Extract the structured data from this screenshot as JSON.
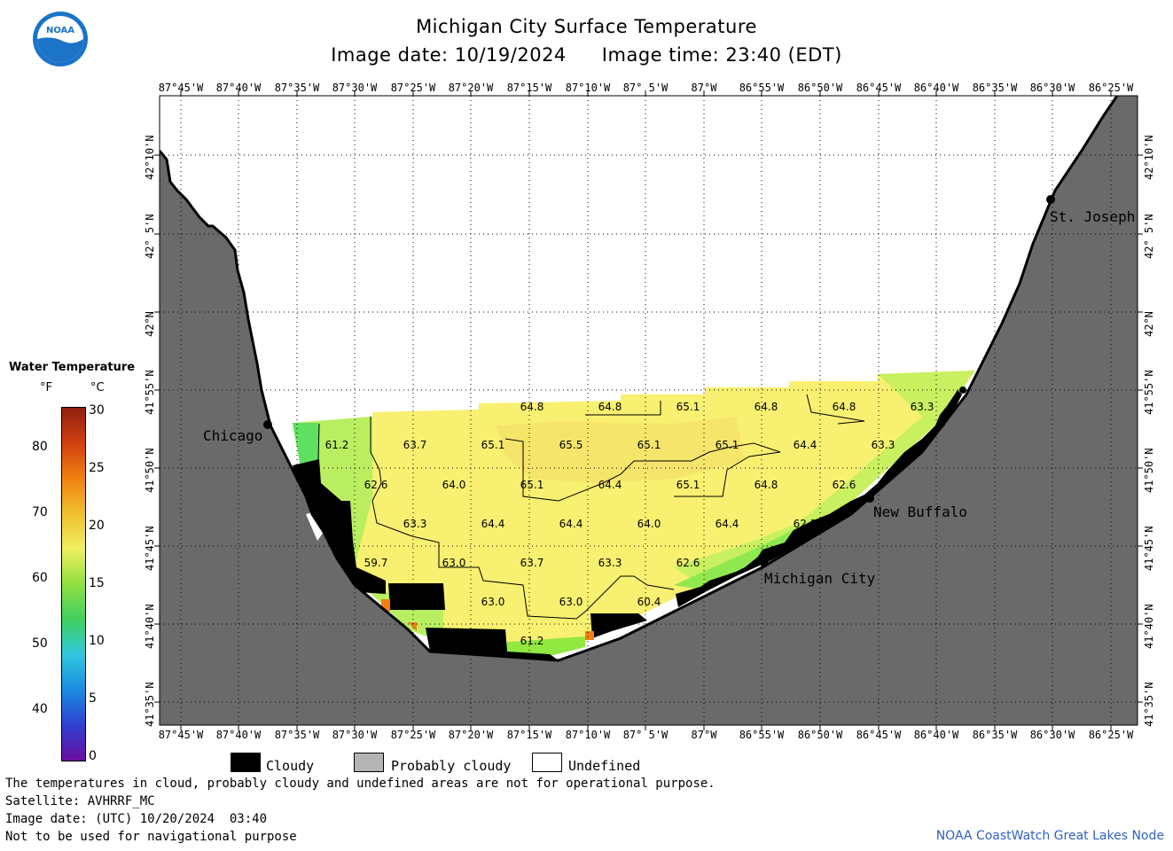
{
  "title": "Michigan City Surface Temperature",
  "image_date_label": "Image date: 10/19/2024",
  "image_time_label": "Image time: 23:40 (EDT)",
  "logo_text": "NOAA",
  "lon_labels": [
    "87°45'W",
    "87°40'W",
    "87°35'W",
    "87°30'W",
    "87°25'W",
    "87°20'W",
    "87°15'W",
    "87°10'W",
    "87° 5'W",
    "87°W",
    "86°55'W",
    "86°50'W",
    "86°45'W",
    "86°40'W",
    "86°35'W",
    "86°30'W",
    "86°25'W"
  ],
  "lat_labels": [
    "42°10'N",
    "42° 5'N",
    "42°N",
    "41°55'N",
    "41°50'N",
    "41°45'N",
    "41°40'N",
    "41°35'N"
  ],
  "cities": [
    {
      "name": "Chicago"
    },
    {
      "name": "St. Joseph"
    },
    {
      "name": "New Buffalo"
    },
    {
      "name": "Michigan City"
    }
  ],
  "temperature_labels": [
    "64.8",
    "64.8",
    "65.1",
    "64.8",
    "64.8",
    "63.3",
    "61.2",
    "63.7",
    "65.1",
    "65.5",
    "65.1",
    "65.1",
    "64.4",
    "63.3",
    "62.6",
    "64.0",
    "65.1",
    "64.4",
    "65.1",
    "64.8",
    "62.6",
    "63.3",
    "64.4",
    "64.4",
    "64.0",
    "64.4",
    "62.2",
    "59.7",
    "63.0",
    "63.7",
    "63.3",
    "62.6",
    "63.0",
    "63.0",
    "60.4",
    "61.2"
  ],
  "legend": {
    "title": "Water Temperature",
    "unit_f": "°F",
    "unit_c": "°C",
    "f_ticks": [
      "80",
      "70",
      "60",
      "50",
      "40"
    ],
    "c_ticks": [
      "30",
      "25",
      "20",
      "15",
      "10",
      "5",
      "0"
    ],
    "colors": [
      "#6a0fa0",
      "#3040d0",
      "#1a8be0",
      "#30c8e0",
      "#40d060",
      "#90e040",
      "#f0f060",
      "#f0c030",
      "#f08010",
      "#d04010",
      "#902010"
    ]
  },
  "key": {
    "cloudy": "Cloudy",
    "probably_cloudy": "Probably cloudy",
    "undefined": "Undefined",
    "colors": {
      "cloudy": "#000000",
      "probably_cloudy": "#b4b4b4",
      "undefined": "#ffffff"
    }
  },
  "footer": {
    "disclaimer": "The temperatures in cloud, probably cloudy and undefined areas are not for operational purpose.",
    "satellite": "Satellite: AVHRRF_MC",
    "utc_date": "Image date: (UTC) 10/20/2024  03:40",
    "nav_warning": "Not to be used for navigational purpose",
    "credit": "NOAA CoastWatch Great Lakes Node"
  },
  "colors": {
    "land": "#6a6a6a",
    "warm_water": "#f8f070",
    "cool_water": "#b8ee60",
    "cold_water": "#60e060"
  }
}
